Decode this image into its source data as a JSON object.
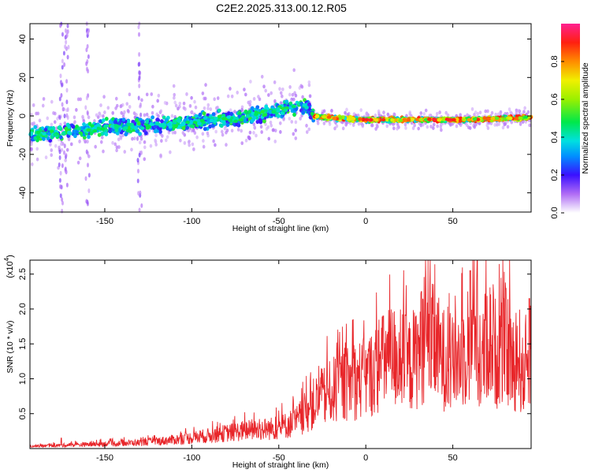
{
  "title": "C2E2.2025.313.00.12.R05",
  "colors": {
    "snr_line": "#e8262a",
    "frame": "#000000",
    "background": "#ffffff"
  },
  "chart_data": [
    {
      "type": "heatmap",
      "panel": "top",
      "title": "C2E2.2025.313.00.12.R05",
      "xlabel": "Height of straight line (km)",
      "ylabel": "Frequency (Hz)",
      "xlim": [
        -193,
        95
      ],
      "ylim": [
        -50,
        48
      ],
      "x_ticks": [
        -150,
        -100,
        -50,
        0,
        50
      ],
      "y_ticks": [
        -40,
        -20,
        0,
        20,
        40
      ],
      "colorbar": {
        "label": "Normalized spectral amplitude",
        "range": [
          0,
          1
        ],
        "ticks": [
          0.0,
          0.2,
          0.4,
          0.6,
          0.8
        ],
        "tick_labels": [
          "0.0",
          "0.2",
          "0.4",
          "0.6",
          "0.8"
        ],
        "colormap": "rainbow"
      },
      "ridge": {
        "description": "dominant frequency vs height",
        "x": [
          -193,
          -170,
          -150,
          -130,
          -110,
          -90,
          -70,
          -55,
          -45,
          -35,
          -30,
          -20,
          0,
          20,
          50,
          95
        ],
        "y": [
          -10,
          -8,
          -6,
          -5,
          -4,
          -2,
          -1,
          2,
          4,
          5,
          0,
          -1,
          -2,
          -2,
          -2,
          -1
        ]
      }
    },
    {
      "type": "line",
      "panel": "bottom",
      "xlabel": "Height of straight line (km)",
      "ylabel": "SNR (10 * v/v)",
      "y_scale_label": "(x10",
      "y_scale_exponent": "4",
      "xlim": [
        -193,
        95
      ],
      "ylim": [
        0,
        27000
      ],
      "x_ticks": [
        -150,
        -100,
        -50,
        0,
        50
      ],
      "y_ticks": [
        5000,
        10000,
        15000,
        20000,
        25000
      ],
      "y_tick_labels": [
        "0.5",
        "1.0",
        "1.5",
        "2.0",
        "2.5"
      ],
      "series": [
        {
          "name": "SNR",
          "x": [
            -193,
            -180,
            -170,
            -160,
            -150,
            -140,
            -130,
            -120,
            -110,
            -100,
            -90,
            -80,
            -70,
            -60,
            -50,
            -45,
            -40,
            -35,
            -30,
            -25,
            -20,
            -15,
            -10,
            -5,
            0,
            5,
            10,
            15,
            20,
            25,
            30,
            35,
            40,
            45,
            50,
            55,
            60,
            63,
            65,
            70,
            75,
            80,
            85,
            88,
            90,
            95
          ],
          "y": [
            400,
            500,
            600,
            700,
            800,
            900,
            1000,
            1200,
            1500,
            1800,
            2200,
            2600,
            3000,
            3200,
            3500,
            4000,
            4500,
            6000,
            7500,
            8500,
            9500,
            10500,
            11000,
            11500,
            12000,
            13000,
            14500,
            15500,
            15000,
            14000,
            16000,
            19000,
            17000,
            15000,
            14000,
            16000,
            17000,
            25000,
            12000,
            19000,
            16000,
            17500,
            14000,
            16000,
            12000,
            18000
          ],
          "peak_annotations": [
            {
              "x": -175,
              "y": 1500
            },
            {
              "x": 10,
              "y": 19000
            },
            {
              "x": 32,
              "y": 22500
            },
            {
              "x": 60,
              "y": 25500
            },
            {
              "x": 64,
              "y": 27000
            },
            {
              "x": 79,
              "y": 21500
            },
            {
              "x": 94,
              "y": 21500
            }
          ]
        }
      ]
    }
  ]
}
